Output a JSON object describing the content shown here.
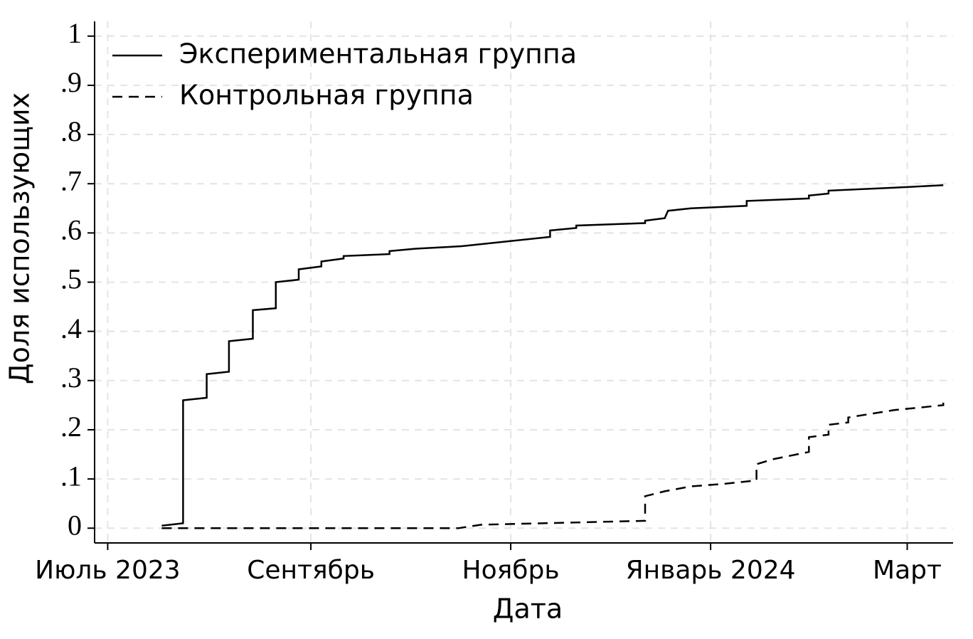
{
  "chart_data": {
    "type": "line",
    "xlabel": "Дата",
    "ylabel": "Доля использующих",
    "xlim": [
      -4,
      258
    ],
    "xticks": [
      {
        "value": 0,
        "label": "Июль 2023"
      },
      {
        "value": 62,
        "label": "Сентябрь"
      },
      {
        "value": 123,
        "label": "Ноябрь"
      },
      {
        "value": 184,
        "label": "Январь 2024"
      },
      {
        "value": 244,
        "label": "Март"
      }
    ],
    "ylim": [
      -0.03,
      1.03
    ],
    "yticks": [
      0,
      {
        "value": 0.1,
        "label": ".1"
      },
      {
        "value": 0.2,
        "label": ".2"
      },
      {
        "value": 0.3,
        "label": ".3"
      },
      {
        "value": 0.4,
        "label": ".4"
      },
      {
        "value": 0.5,
        "label": ".5"
      },
      {
        "value": 0.6,
        "label": ".6"
      },
      {
        "value": 0.7,
        "label": ".7"
      },
      {
        "value": 0.8,
        "label": ".8"
      },
      {
        "value": 0.9,
        "label": ".9"
      },
      1
    ],
    "grid": true,
    "legend": "upper left",
    "series": [
      {
        "name": "Экспериментальная группа",
        "color": "#000000",
        "dash": "solid",
        "x": [
          16.5,
          23,
          23,
          30.2,
          30.2,
          37,
          37,
          44.3,
          44.3,
          51.3,
          51.3,
          58.3,
          58.3,
          65.2,
          65.2,
          72,
          72,
          86,
          86,
          94,
          108,
          135,
          135,
          143,
          143,
          164,
          164,
          170,
          171,
          178,
          195,
          195,
          214,
          214,
          220,
          220,
          240,
          255
        ],
        "values": [
          0.005,
          0.01,
          0.26,
          0.265,
          0.313,
          0.318,
          0.38,
          0.385,
          0.443,
          0.447,
          0.5,
          0.505,
          0.526,
          0.532,
          0.542,
          0.548,
          0.553,
          0.557,
          0.563,
          0.568,
          0.573,
          0.592,
          0.605,
          0.61,
          0.615,
          0.62,
          0.625,
          0.63,
          0.645,
          0.65,
          0.655,
          0.665,
          0.67,
          0.676,
          0.68,
          0.686,
          0.692,
          0.697
        ]
      },
      {
        "name": "Контрольная группа",
        "color": "#000000",
        "dash": "dashed",
        "x": [
          16.5,
          107,
          114,
          164,
          164,
          170,
          178,
          188,
          198,
          198,
          203,
          214,
          214,
          220,
          220,
          226,
          226,
          240,
          255,
          255
        ],
        "values": [
          0,
          0,
          0.007,
          0.015,
          0.065,
          0.075,
          0.085,
          0.09,
          0.097,
          0.13,
          0.14,
          0.155,
          0.185,
          0.19,
          0.21,
          0.215,
          0.225,
          0.24,
          0.25,
          0.255
        ]
      }
    ]
  }
}
